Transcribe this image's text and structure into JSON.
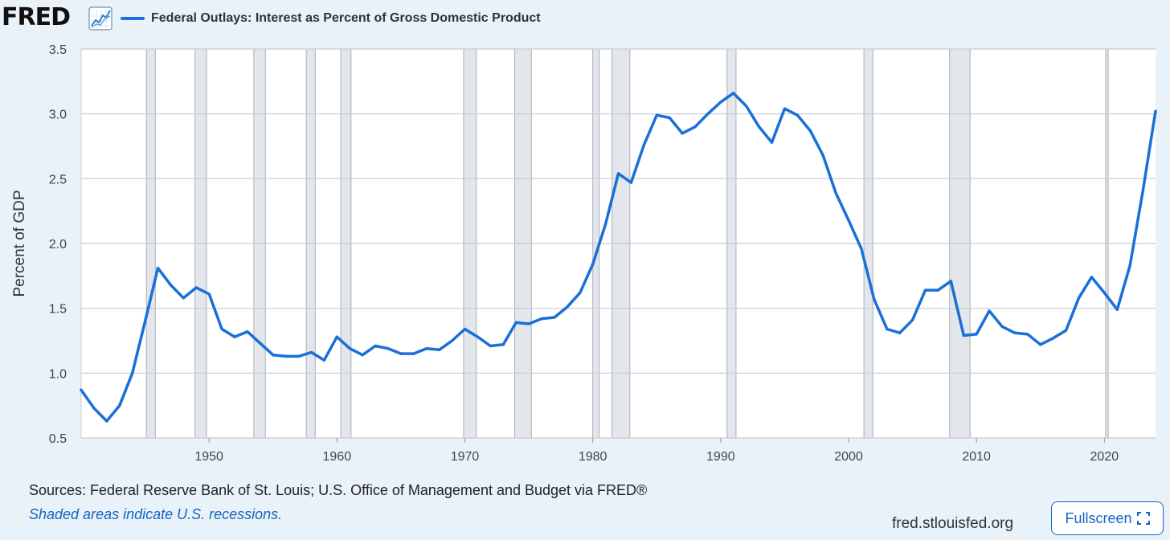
{
  "header": {
    "logo_text": "FRED",
    "logo_icon": "line-chart-icon",
    "legend_label": "Federal Outlays: Interest as Percent of Gross Domestic Product"
  },
  "footer": {
    "sources": "Sources: Federal Reserve Bank of St. Louis; U.S. Office of Management and Budget via FRED®",
    "recession_note": "Shaded areas indicate U.S. recessions.",
    "site_url": "fred.stlouisfed.org",
    "fullscreen_label": "Fullscreen",
    "fullscreen_icon": "expand-icon"
  },
  "colors": {
    "series": "#1a6fd9",
    "background": "#e9f1f9",
    "plot_background": "#ffffff",
    "recession": "#e3e6ea",
    "accent": "#1565c0"
  },
  "chart_data": {
    "type": "line",
    "title": "",
    "xlabel": "",
    "ylabel": "Percent of GDP",
    "xlim": [
      1940,
      2024
    ],
    "ylim": [
      0.5,
      3.5
    ],
    "yticks": [
      0.5,
      1.0,
      1.5,
      2.0,
      2.5,
      3.0,
      3.5
    ],
    "ytick_labels": [
      "0.5",
      "1.0",
      "1.5",
      "2.0",
      "2.5",
      "3.0",
      "3.5"
    ],
    "xticks": [
      1950,
      1960,
      1970,
      1980,
      1990,
      2000,
      2010,
      2020
    ],
    "xtick_labels": [
      "1950",
      "1960",
      "1970",
      "1980",
      "1990",
      "2000",
      "2010",
      "2020"
    ],
    "grid": true,
    "legend": "top-left",
    "recessions": [
      [
        1945.1,
        1945.8
      ],
      [
        1948.9,
        1949.8
      ],
      [
        1953.5,
        1954.4
      ],
      [
        1957.6,
        1958.3
      ],
      [
        1960.3,
        1961.1
      ],
      [
        1969.9,
        1970.9
      ],
      [
        1973.9,
        1975.2
      ],
      [
        1980.0,
        1980.5
      ],
      [
        1981.5,
        1982.9
      ],
      [
        1990.5,
        1991.2
      ],
      [
        2001.2,
        2001.9
      ],
      [
        2007.9,
        2009.5
      ],
      [
        2020.1,
        2020.3
      ]
    ],
    "series": [
      {
        "name": "Federal Outlays: Interest as Percent of Gross Domestic Product",
        "x": [
          1940,
          1941,
          1942,
          1943,
          1944,
          1945,
          1946,
          1947,
          1948,
          1949,
          1950,
          1951,
          1952,
          1953,
          1954,
          1955,
          1956,
          1957,
          1958,
          1959,
          1960,
          1961,
          1962,
          1963,
          1964,
          1965,
          1966,
          1967,
          1968,
          1969,
          1970,
          1971,
          1972,
          1973,
          1974,
          1975,
          1976,
          1977,
          1978,
          1979,
          1980,
          1981,
          1982,
          1983,
          1984,
          1985,
          1986,
          1987,
          1988,
          1989,
          1990,
          1991,
          1992,
          1993,
          1994,
          1995,
          1996,
          1997,
          1998,
          1999,
          2000,
          2001,
          2002,
          2003,
          2004,
          2005,
          2006,
          2007,
          2008,
          2009,
          2010,
          2011,
          2012,
          2013,
          2014,
          2015,
          2016,
          2017,
          2018,
          2019,
          2020,
          2021,
          2022,
          2023,
          2024
        ],
        "values": [
          0.87,
          0.73,
          0.63,
          0.75,
          1.0,
          1.4,
          1.81,
          1.68,
          1.58,
          1.66,
          1.61,
          1.34,
          1.28,
          1.32,
          1.23,
          1.14,
          1.13,
          1.13,
          1.16,
          1.1,
          1.28,
          1.19,
          1.14,
          1.21,
          1.19,
          1.15,
          1.15,
          1.19,
          1.18,
          1.25,
          1.34,
          1.28,
          1.21,
          1.22,
          1.39,
          1.38,
          1.42,
          1.43,
          1.51,
          1.62,
          1.84,
          2.15,
          2.54,
          2.47,
          2.76,
          2.99,
          2.97,
          2.85,
          2.9,
          3.0,
          3.09,
          3.16,
          3.06,
          2.9,
          2.78,
          3.04,
          2.99,
          2.87,
          2.68,
          2.39,
          2.18,
          1.96,
          1.57,
          1.34,
          1.31,
          1.41,
          1.64,
          1.64,
          1.71,
          1.29,
          1.3,
          1.48,
          1.36,
          1.31,
          1.3,
          1.22,
          1.27,
          1.33,
          1.58,
          1.74,
          1.62,
          1.49,
          1.83,
          2.4,
          3.02
        ]
      }
    ]
  }
}
